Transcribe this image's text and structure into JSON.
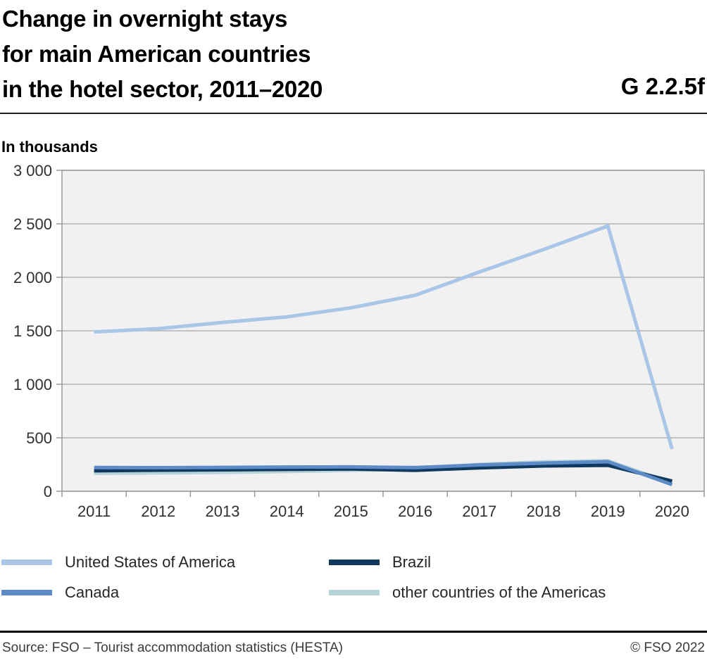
{
  "header": {
    "title_lines": [
      "Change in overnight stays",
      "for main American countries",
      "in the hotel sector, 2011–2020"
    ],
    "figure_code": "G 2.2.5f"
  },
  "unit_label": "In thousands",
  "chart_data": {
    "type": "line",
    "title": "Change in overnight stays for main American countries in the hotel sector, 2011–2020",
    "ylabel": "In thousands",
    "x": [
      2011,
      2012,
      2013,
      2014,
      2015,
      2016,
      2017,
      2018,
      2019,
      2020
    ],
    "series": [
      {
        "name": "United States of America",
        "color": "#a9c6e8",
        "values": [
          1489,
          1520,
          1578,
          1630,
          1715,
          1832,
          2050,
          2260,
          2480,
          395
        ]
      },
      {
        "name": "Canada",
        "color": "#5c8bc7",
        "values": [
          222,
          220,
          223,
          226,
          228,
          221,
          246,
          263,
          277,
          62
        ]
      },
      {
        "name": "Brazil",
        "color": "#10395e",
        "values": [
          192,
          197,
          201,
          205,
          209,
          196,
          219,
          237,
          243,
          95
        ]
      },
      {
        "name": "other countries of the Americas",
        "color": "#b7d3da",
        "values": [
          168,
          172,
          177,
          185,
          196,
          206,
          252,
          274,
          285,
          75
        ]
      }
    ],
    "ylim": [
      0,
      3000
    ],
    "ytick_step": 500,
    "grid": true,
    "legend_position": "bottom",
    "plot_bg": "#f1f1f1",
    "grid_color": "#b3b3b3",
    "axis_color": "#9a9a9a",
    "tick_label_color": "#303030"
  },
  "legend": {
    "order": [
      0,
      2,
      1,
      3
    ]
  },
  "footer": {
    "source": "Source: FSO – Tourist accommodation statistics (HESTA)",
    "copyright": "© FSO 2022"
  }
}
